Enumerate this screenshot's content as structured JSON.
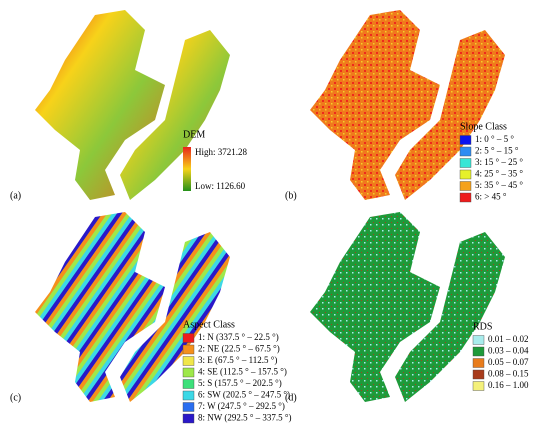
{
  "panels": [
    {
      "label": "(a)",
      "legend": {
        "title": "DEM",
        "high": "High: 3721.28",
        "low": "Low: 1126.60",
        "colors": [
          "#e8231c",
          "#f7d21a",
          "#24901a"
        ]
      }
    },
    {
      "label": "(b)",
      "legend": {
        "title": "Slope Class",
        "items": [
          {
            "text": "1: 0 ° – 5 °",
            "color": "#0a14f0"
          },
          {
            "text": "2: 5 ° – 15 °",
            "color": "#2f8cf2"
          },
          {
            "text": "3: 15 ° – 25 °",
            "color": "#39e6d6"
          },
          {
            "text": "4: 25 ° – 35 °",
            "color": "#e6f02a"
          },
          {
            "text": "5: 35 ° – 45 °",
            "color": "#f5a21c"
          },
          {
            "text": "6: > 45 °",
            "color": "#ee1c1c"
          }
        ]
      }
    },
    {
      "label": "(c)",
      "legend": {
        "title": "Aspect Class",
        "items": [
          {
            "text": "1: N (337.5 ° – 22.5 °)",
            "color": "#ee1c1c"
          },
          {
            "text": "2: NE (22.5 ° – 67.5 °)",
            "color": "#f5901c"
          },
          {
            "text": "3: E (67.5 ° – 112.5 °)",
            "color": "#f0e64a"
          },
          {
            "text": "4: SE (112.5 ° – 157.5 °)",
            "color": "#9ee84a"
          },
          {
            "text": "5: S (157.5 ° – 202.5 °)",
            "color": "#3ce07a"
          },
          {
            "text": "6: SW (202.5 ° – 247.5 °)",
            "color": "#3cd8e6"
          },
          {
            "text": "7: W (247.5 ° – 292.5 °)",
            "color": "#2a6ef0"
          },
          {
            "text": "8: NW (292.5 ° – 337.5 °)",
            "color": "#2a18c8"
          }
        ]
      }
    },
    {
      "label": "(d)",
      "legend": {
        "title": "RDS",
        "items": [
          {
            "text": "0.01 – 0.02",
            "color": "#a8ecec"
          },
          {
            "text": "0.03 – 0.04",
            "color": "#1e9a3a"
          },
          {
            "text": "0.05 – 0.07",
            "color": "#e87c1c"
          },
          {
            "text": "0.08 – 0.15",
            "color": "#a83c1c"
          },
          {
            "text": "0.16 – 1.00",
            "color": "#f4f07a"
          }
        ]
      }
    }
  ]
}
